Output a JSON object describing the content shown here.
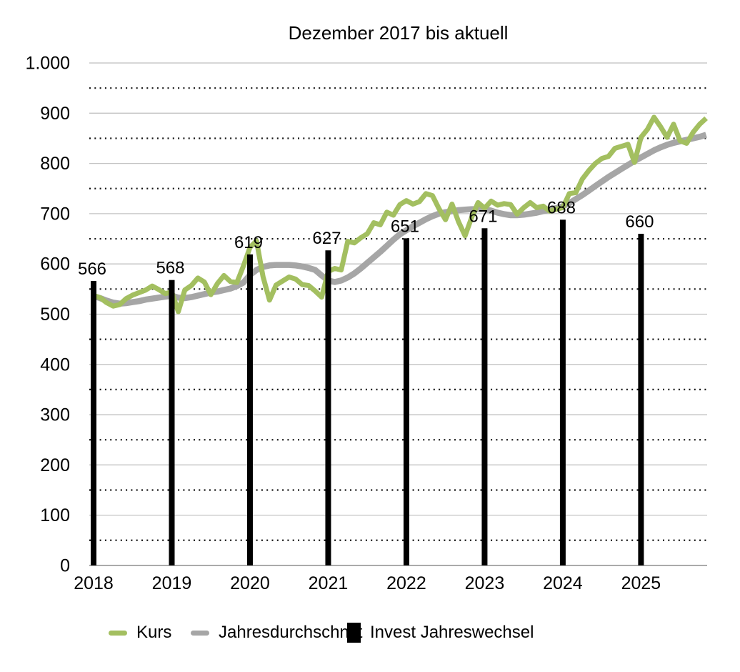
{
  "chart_data": {
    "type": "line",
    "title": "Dezember 2017 bis aktuell",
    "xlabel": "",
    "ylabel": "",
    "ylim": [
      0,
      1000
    ],
    "grid": "major solid gray at 100s, minor dotted black at 50s",
    "minor_gridline_step": 50,
    "legend_position": "bottom",
    "x_tick_labels": [
      "2018",
      "2019",
      "2020",
      "2021",
      "2022",
      "2023",
      "2024",
      "2025"
    ],
    "y_ticks": [
      {
        "value": 0,
        "label": "0"
      },
      {
        "value": 100,
        "label": "100"
      },
      {
        "value": 200,
        "label": "200"
      },
      {
        "value": 300,
        "label": "300"
      },
      {
        "value": 400,
        "label": "400"
      },
      {
        "value": 500,
        "label": "500"
      },
      {
        "value": 600,
        "label": "600"
      },
      {
        "value": 700,
        "label": "700"
      },
      {
        "value": 800,
        "label": "800"
      },
      {
        "value": 900,
        "label": "900"
      },
      {
        "value": 1000,
        "label": "1.000"
      }
    ],
    "series": [
      {
        "name": "Kurs",
        "type": "line",
        "color": "#a3bf60",
        "points_per_year": 12,
        "values": [
          537,
          533,
          523,
          516,
          519,
          531,
          538,
          543,
          548,
          556,
          549,
          541,
          544,
          505,
          548,
          557,
          572,
          564,
          539,
          561,
          577,
          565,
          563,
          596,
          633,
          646,
          575,
          528,
          558,
          566,
          574,
          570,
          559,
          557,
          546,
          534,
          585,
          591,
          588,
          645,
          642,
          652,
          660,
          682,
          678,
          703,
          697,
          718,
          726,
          719,
          724,
          740,
          736,
          710,
          688,
          719,
          684,
          656,
          692,
          722,
          711,
          725,
          717,
          720,
          718,
          699,
          712,
          722,
          712,
          715,
          705,
          709,
          712,
          740,
          742,
          769,
          786,
          800,
          810,
          814,
          830,
          834,
          838,
          802,
          852,
          868,
          892,
          873,
          852,
          878,
          845,
          840,
          862,
          878,
          890
        ]
      },
      {
        "name": "Jahresdurchschnitt",
        "type": "line",
        "color": "#a6a6a6",
        "points_per_year": 12,
        "values": [
          536,
          532,
          527,
          523,
          521,
          522,
          524,
          526,
          529,
          531,
          533,
          535,
          537,
          533,
          532,
          534,
          537,
          540,
          543,
          545,
          548,
          551,
          556,
          563,
          578,
          588,
          594,
          597,
          598,
          598,
          598,
          597,
          595,
          592,
          588,
          577,
          567,
          564,
          567,
          573,
          581,
          591,
          602,
          613,
          624,
          636,
          648,
          659,
          667,
          675,
          682,
          689,
          695,
          700,
          703,
          705,
          707,
          708,
          709,
          709,
          709,
          706,
          702,
          699,
          697,
          697,
          698,
          700,
          702,
          705,
          708,
          711,
          715,
          721,
          729,
          737,
          746,
          755,
          764,
          773,
          781,
          789,
          797,
          805,
          812,
          819,
          826,
          832,
          837,
          841,
          844,
          847,
          850,
          853,
          857
        ]
      },
      {
        "name": "Invest Jahreswechsel",
        "type": "bar",
        "color": "#000000",
        "at_year_ticks": [
          "2018",
          "2019",
          "2020",
          "2021",
          "2022",
          "2023",
          "2024",
          "2025"
        ],
        "values": [
          566,
          568,
          619,
          627,
          651,
          671,
          688,
          660
        ],
        "labels": [
          "566",
          "568",
          "619",
          "627",
          "651",
          "671",
          "688",
          "660"
        ]
      }
    ],
    "colors": {
      "kurs": "#a3bf60",
      "jahresdurchschnitt": "#a6a6a6",
      "invest": "#000000",
      "major_grid": "#c3c3c3",
      "axis_line": "#8e8e8e",
      "minor_dots": "#141414",
      "text": "#000000"
    }
  }
}
